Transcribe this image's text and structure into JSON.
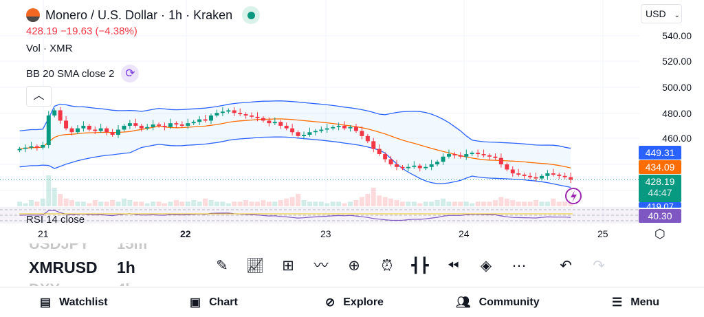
{
  "header": {
    "symbol_title": "Monero / U.S. Dollar · 1h · Kraken",
    "price_change": "428.19  −19.63 (−4.38%)",
    "vol_label": "Vol · XMR",
    "bb_label": "BB 20 SMA close 2",
    "currency": "USD",
    "collapse_icon": "chevron-up-icon"
  },
  "price_axis": [
    "540.00",
    "520.00",
    "500.00",
    "480.00",
    "460.00"
  ],
  "tags": {
    "bb_upper": "449.31",
    "bb_basis": "434.09",
    "last_price": "428.19",
    "countdown": "44:47",
    "bb_lower": "419.07",
    "rsi": "40.30"
  },
  "colors": {
    "up": "#089981",
    "down": "#f23645",
    "bb_band": "#2962ff",
    "basis": "#ff6d00",
    "rsi": "#7e57c2"
  },
  "rsi_label": "RSI 14 close",
  "x_axis": [
    "21",
    "22",
    "23",
    "24",
    "25"
  ],
  "watchlist": [
    {
      "symbol": "USDJPY",
      "tf": "15m"
    },
    {
      "symbol": "XMRUSD",
      "tf": "1h"
    },
    {
      "symbol": "DXY",
      "tf": "4h"
    }
  ],
  "toolbar": [
    "draw",
    "indicators",
    "templates",
    "compare",
    "add",
    "alert",
    "candles",
    "replay",
    "layers",
    "more",
    "undo",
    "redo"
  ],
  "nav": {
    "watchlist": "Watchlist",
    "chart": "Chart",
    "explore": "Explore",
    "community": "Community",
    "menu": "Menu"
  },
  "chart_data": {
    "type": "candlestick",
    "start_day": 20.83,
    "bars_per_day": 24,
    "open_first": 451,
    "closes": [
      452,
      453,
      454,
      453,
      455,
      478,
      482,
      474,
      468,
      465,
      468,
      470,
      467,
      466,
      468,
      465,
      463,
      467,
      470,
      472,
      470,
      468,
      469,
      471,
      470,
      469,
      472,
      471,
      470,
      472,
      473,
      475,
      474,
      478,
      480,
      481,
      482,
      480,
      479,
      478,
      477,
      476,
      474,
      472,
      473,
      470,
      468,
      465,
      462,
      463,
      465,
      466,
      467,
      468,
      469,
      470,
      468,
      469,
      466,
      462,
      458,
      452,
      448,
      444,
      440,
      438,
      437,
      438,
      439,
      437,
      438,
      440,
      442,
      446,
      448,
      447,
      446,
      448,
      449,
      448,
      447,
      446,
      445,
      440,
      436,
      433,
      432,
      431,
      430,
      429,
      431,
      433,
      432,
      431,
      430,
      428
    ],
    "volumes": [
      3,
      2,
      4,
      3,
      5,
      20,
      12,
      8,
      5,
      4,
      3,
      3,
      2,
      4,
      3,
      3,
      4,
      3,
      5,
      4,
      3,
      3,
      2,
      3,
      3,
      2,
      3,
      4,
      3,
      3,
      4,
      3,
      5,
      4,
      3,
      3,
      2,
      3,
      3,
      4,
      3,
      3,
      4,
      3,
      3,
      4,
      5,
      6,
      8,
      4,
      3,
      3,
      3,
      2,
      3,
      3,
      2,
      3,
      4,
      6,
      8,
      12,
      7,
      6,
      5,
      4,
      3,
      3,
      3,
      2,
      3,
      3,
      4,
      5,
      3,
      3,
      3,
      3,
      2,
      3,
      3,
      3,
      4,
      6,
      5,
      4,
      3,
      3,
      3,
      4,
      3,
      3,
      5,
      3,
      3,
      2
    ],
    "ylim": [
      415,
      545
    ]
  }
}
